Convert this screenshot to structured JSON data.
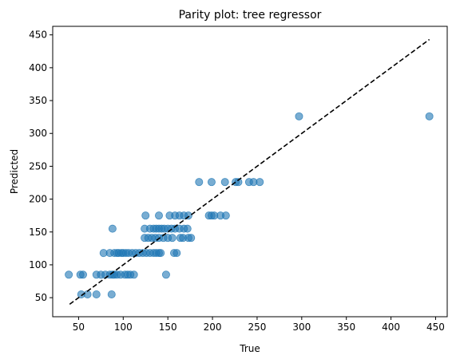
{
  "chart_data": {
    "type": "scatter",
    "title": "Parity plot: tree regressor",
    "xlabel": "True",
    "ylabel": "Predicted",
    "xlim": [
      21,
      463
    ],
    "ylim": [
      21,
      463
    ],
    "xticks": [
      50,
      100,
      150,
      200,
      250,
      300,
      350,
      400,
      450
    ],
    "yticks": [
      50,
      100,
      150,
      200,
      250,
      300,
      350,
      400,
      450
    ],
    "grid": false,
    "point_color": "#1f77b4",
    "point_opacity": 0.6,
    "reference_line": {
      "style": "dashed",
      "color": "#000000",
      "from": [
        40,
        40
      ],
      "to": [
        443,
        443
      ]
    },
    "points": [
      [
        39,
        85
      ],
      [
        52,
        85
      ],
      [
        55,
        85
      ],
      [
        53,
        55
      ],
      [
        60,
        55
      ],
      [
        70,
        55
      ],
      [
        70,
        85
      ],
      [
        75,
        85
      ],
      [
        80,
        85
      ],
      [
        85,
        85
      ],
      [
        88,
        85
      ],
      [
        90,
        85
      ],
      [
        93,
        85
      ],
      [
        97,
        85
      ],
      [
        102,
        85
      ],
      [
        105,
        85
      ],
      [
        108,
        85
      ],
      [
        112,
        85
      ],
      [
        148,
        85
      ],
      [
        87,
        55
      ],
      [
        88,
        155
      ],
      [
        78,
        118
      ],
      [
        85,
        118
      ],
      [
        90,
        118
      ],
      [
        93,
        118
      ],
      [
        95,
        118
      ],
      [
        98,
        118
      ],
      [
        100,
        118
      ],
      [
        103,
        118
      ],
      [
        106,
        118
      ],
      [
        110,
        118
      ],
      [
        114,
        118
      ],
      [
        118,
        118
      ],
      [
        122,
        118
      ],
      [
        126,
        118
      ],
      [
        130,
        118
      ],
      [
        134,
        118
      ],
      [
        137,
        118
      ],
      [
        140,
        118
      ],
      [
        142,
        118
      ],
      [
        157,
        118
      ],
      [
        160,
        118
      ],
      [
        124,
        141
      ],
      [
        128,
        141
      ],
      [
        132,
        141
      ],
      [
        136,
        141
      ],
      [
        140,
        141
      ],
      [
        145,
        141
      ],
      [
        150,
        141
      ],
      [
        155,
        141
      ],
      [
        164,
        141
      ],
      [
        167,
        141
      ],
      [
        173,
        141
      ],
      [
        176,
        141
      ],
      [
        124,
        155
      ],
      [
        130,
        155
      ],
      [
        134,
        155
      ],
      [
        137,
        155
      ],
      [
        140,
        155
      ],
      [
        143,
        155
      ],
      [
        146,
        155
      ],
      [
        150,
        155
      ],
      [
        154,
        155
      ],
      [
        158,
        155
      ],
      [
        163,
        155
      ],
      [
        168,
        155
      ],
      [
        172,
        155
      ],
      [
        125,
        175
      ],
      [
        140,
        175
      ],
      [
        152,
        175
      ],
      [
        158,
        175
      ],
      [
        163,
        175
      ],
      [
        168,
        175
      ],
      [
        173,
        175
      ],
      [
        196,
        175
      ],
      [
        199,
        175
      ],
      [
        202,
        175
      ],
      [
        209,
        175
      ],
      [
        215,
        175
      ],
      [
        185,
        226
      ],
      [
        199,
        226
      ],
      [
        214,
        226
      ],
      [
        226,
        226
      ],
      [
        229,
        226
      ],
      [
        241,
        226
      ],
      [
        246,
        226
      ],
      [
        253,
        226
      ],
      [
        297,
        326
      ],
      [
        443,
        326
      ]
    ]
  }
}
